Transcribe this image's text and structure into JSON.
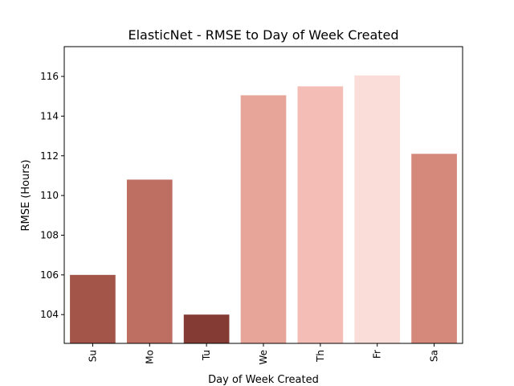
{
  "chart_data": {
    "type": "bar",
    "title": "ElasticNet - RMSE to Day of Week Created",
    "xlabel": "Day of Week Created",
    "ylabel": "RMSE (Hours)",
    "categories": [
      "Su",
      "Mo",
      "Tu",
      "We",
      "Th",
      "Fr",
      "Sa"
    ],
    "values": [
      106.0,
      110.8,
      104.0,
      115.05,
      115.5,
      116.05,
      112.1
    ],
    "colors": [
      "#a25548",
      "#bf6e62",
      "#833b33",
      "#e7a498",
      "#f4bdb5",
      "#fadcd8",
      "#d4897b"
    ],
    "ylim": [
      102.55,
      117.5
    ],
    "yticks": [
      104,
      106,
      108,
      110,
      112,
      114,
      116
    ],
    "grid": false,
    "legend": "none"
  }
}
